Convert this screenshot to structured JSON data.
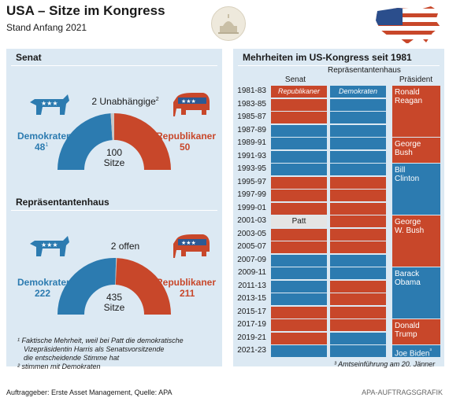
{
  "title": "USA – Sitze im Kongress",
  "subtitle": "Stand Anfang 2021",
  "colors": {
    "dem": "#2c7bb0",
    "rep": "#c8472a",
    "neutral": "#c8c8c8",
    "patt": "#e4e4e4",
    "panel": "#dce9f3"
  },
  "senate": {
    "heading": "Senat",
    "dem_label": "Demokraten",
    "dem_value": "48",
    "dem_sup": "1",
    "rep_label": "Republikaner",
    "rep_value": "50",
    "other_label": "2 Unabhängige",
    "other_sup": "2",
    "total_value": "100",
    "total_label": "Sitze",
    "icon_dem": "donkey-icon",
    "icon_rep": "elephant-icon"
  },
  "house": {
    "heading": "Repräsentantenhaus",
    "dem_label": "Demokraten",
    "dem_value": "222",
    "rep_label": "Republikaner",
    "rep_value": "211",
    "other_label": "2 offen",
    "total_value": "435",
    "total_label": "Sitze",
    "icon_dem": "donkey-icon",
    "icon_rep": "elephant-icon"
  },
  "footnotes": {
    "f1": "¹ Faktische Mehrheit, weil bei Patt die demokratische",
    "f1b": "Vizepräsidentin Harris als Senatsvorsitzende",
    "f1c": "die entscheidende Stimme hat",
    "f2": "² stimmen mit Demokraten",
    "f3": "³ Amtseinführung am 20. Jänner"
  },
  "chart_data": [
    {
      "type": "pie",
      "title": "Senat",
      "categories": [
        "Demokraten",
        "2 Unabhängige",
        "Republikaner"
      ],
      "values": [
        48,
        2,
        50
      ]
    },
    {
      "type": "pie",
      "title": "Repräsentantenhaus",
      "categories": [
        "Demokraten",
        "2 offen",
        "Republikaner"
      ],
      "values": [
        222,
        2,
        211
      ]
    },
    {
      "type": "table",
      "title": "Mehrheiten im US-Kongress seit 1981",
      "columns": [
        "Senat",
        "Repräsentantenhaus",
        "Präsident"
      ],
      "periods": [
        "1981-83",
        "1983-85",
        "1985-87",
        "1987-89",
        "1989-91",
        "1991-93",
        "1993-95",
        "1995-97",
        "1997-99",
        "1999-01",
        "2001-03",
        "2003-05",
        "2005-07",
        "2007-09",
        "2009-11",
        "2011-13",
        "2013-15",
        "2015-17",
        "2017-19",
        "2019-21",
        "2021-23"
      ],
      "senate": [
        "R",
        "R",
        "R",
        "D",
        "D",
        "D",
        "D",
        "R",
        "R",
        "R",
        "P",
        "R",
        "R",
        "D",
        "D",
        "D",
        "D",
        "R",
        "R",
        "R",
        "D"
      ],
      "house": [
        "D",
        "D",
        "D",
        "D",
        "D",
        "D",
        "D",
        "R",
        "R",
        "R",
        "R",
        "R",
        "R",
        "D",
        "D",
        "R",
        "R",
        "R",
        "R",
        "D",
        "D"
      ],
      "senate_first_label": "Republikaner",
      "house_first_label": "Demokraten",
      "patt_label": "Patt",
      "presidents": [
        {
          "name": "Ronald Reagan",
          "line1": "Ronald",
          "line2": "Reagan",
          "party": "R",
          "start": 0,
          "span": 4
        },
        {
          "name": "George Bush",
          "line1": "George",
          "line2": "Bush",
          "party": "R",
          "start": 4,
          "span": 2
        },
        {
          "name": "Bill Clinton",
          "line1": "Bill",
          "line2": "Clinton",
          "party": "D",
          "start": 6,
          "span": 4
        },
        {
          "name": "George W. Bush",
          "line1": "George",
          "line2": "W. Bush",
          "party": "R",
          "start": 10,
          "span": 4
        },
        {
          "name": "Barack Obama",
          "line1": "Barack",
          "line2": "Obama",
          "party": "D",
          "start": 14,
          "span": 4
        },
        {
          "name": "Donald Trump",
          "line1": "Donald",
          "line2": "Trump",
          "party": "R",
          "start": 18,
          "span": 2
        },
        {
          "name": "Joe Biden",
          "line1": "Joe Biden",
          "line2": "³",
          "party": "D",
          "start": 20,
          "span": 1
        }
      ]
    }
  ],
  "footer": {
    "left": "Auftraggeber: Erste Asset Management, Quelle: APA",
    "right": "APA-AUFTRAGSGRAFIK"
  }
}
